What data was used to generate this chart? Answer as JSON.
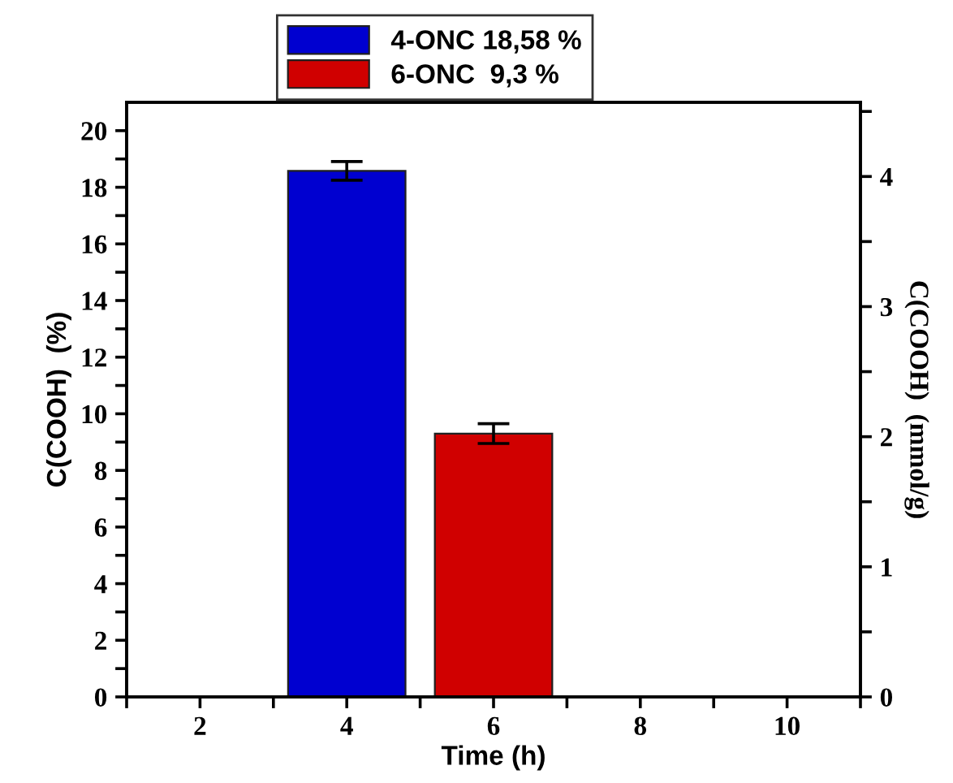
{
  "chart_data": {
    "type": "bar",
    "xlabel": "Time (h)",
    "ylabel": "C(COOH)  (%)",
    "y2label": "C(COOH)  (mmol/g)",
    "x": [
      4,
      6
    ],
    "series": [
      {
        "name": "4-ONC 18,58 %",
        "color": "#0000d0",
        "values": [
          18.58,
          null
        ],
        "errors": [
          0.33,
          null
        ]
      },
      {
        "name": "6-ONC  9,3 %",
        "color": "#d00000",
        "values": [
          null,
          9.3
        ],
        "errors": [
          null,
          0.35
        ]
      }
    ],
    "xlim": [
      1,
      11
    ],
    "xticks": [
      {
        "value": 1,
        "label": null
      },
      2,
      {
        "value": 3,
        "label": null
      },
      4,
      {
        "value": 5,
        "label": null
      },
      6,
      {
        "value": 7,
        "label": null
      },
      8,
      {
        "value": 9,
        "label": null
      },
      10,
      {
        "value": 11,
        "label": null
      }
    ],
    "ylim": [
      0,
      21
    ],
    "yticks": [
      0,
      {
        "value": 1,
        "label": null
      },
      2,
      {
        "value": 3,
        "label": null
      },
      4,
      {
        "value": 5,
        "label": null
      },
      6,
      {
        "value": 7,
        "label": null
      },
      8,
      {
        "value": 9,
        "label": null
      },
      10,
      {
        "value": 11,
        "label": null
      },
      12,
      {
        "value": 13,
        "label": null
      },
      14,
      {
        "value": 15,
        "label": null
      },
      16,
      {
        "value": 17,
        "label": null
      },
      18,
      {
        "value": 19,
        "label": null
      },
      20
    ],
    "y2lim": [
      0,
      4.57
    ],
    "y2ticks": [
      0,
      {
        "value": 0.5,
        "label": null
      },
      1,
      {
        "value": 1.5,
        "label": null
      },
      2,
      {
        "value": 2.5,
        "label": null
      },
      3,
      {
        "value": 3.5,
        "label": null
      },
      4,
      {
        "value": 4.5,
        "label": null
      }
    ],
    "legend": "top",
    "grid": false
  }
}
